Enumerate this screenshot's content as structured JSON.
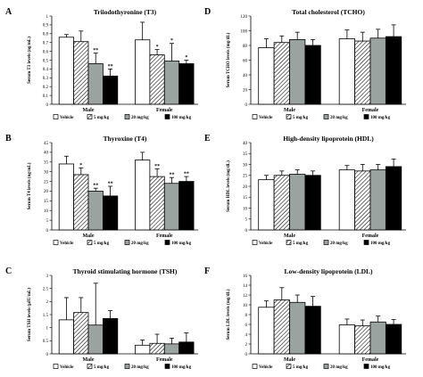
{
  "legend": [
    "Vehicle",
    "5 mg/kg",
    "20 mg/kg",
    "100 mg/kg"
  ],
  "chart_data": [
    {
      "type": "bar",
      "panel": "A",
      "title": "Triiodothyronine (T3)",
      "ylabel": "Serum T3 levels (ng/mL)",
      "ylim": [
        0,
        1
      ],
      "yticks": [
        "0",
        "0.1",
        "0.2",
        "0.3",
        "0.4",
        "0.5",
        "0.6",
        "0.7",
        "0.8",
        "0.9",
        "1"
      ],
      "categories": [
        "Male",
        "Female"
      ],
      "series": [
        {
          "values": [
            0.76,
            0.73
          ],
          "errors": [
            0.03,
            0.2
          ],
          "stars": [
            "",
            ""
          ]
        },
        {
          "values": [
            0.71,
            0.56
          ],
          "errors": [
            0.12,
            0.06
          ],
          "stars": [
            "",
            "*"
          ]
        },
        {
          "values": [
            0.46,
            0.49
          ],
          "errors": [
            0.12,
            0.2
          ],
          "stars": [
            "**",
            "*"
          ]
        },
        {
          "values": [
            0.32,
            0.46
          ],
          "errors": [
            0.08,
            0.04
          ],
          "stars": [
            "**",
            "*"
          ]
        }
      ]
    },
    {
      "type": "bar",
      "panel": "B",
      "title": "Thyroxine (T4)",
      "ylabel": "Serum T4 levels (ng/mL)",
      "ylim": [
        0,
        45
      ],
      "yticks": [
        "0",
        "5",
        "10",
        "15",
        "20",
        "25",
        "30",
        "35",
        "40",
        "45"
      ],
      "categories": [
        "Male",
        "Female"
      ],
      "series": [
        {
          "values": [
            34,
            36
          ],
          "errors": [
            4,
            4
          ],
          "stars": [
            "",
            ""
          ]
        },
        {
          "values": [
            28.5,
            27.5
          ],
          "errors": [
            3.5,
            4
          ],
          "stars": [
            "*",
            "**"
          ]
        },
        {
          "values": [
            20,
            24
          ],
          "errors": [
            1.5,
            3
          ],
          "stars": [
            "**",
            "**"
          ]
        },
        {
          "values": [
            17.5,
            25
          ],
          "errors": [
            5,
            2.5
          ],
          "stars": [
            "**",
            "**"
          ]
        }
      ]
    },
    {
      "type": "bar",
      "panel": "C",
      "title": "Thyroid stimulating hormone (TSH)",
      "ylabel": "Serum TSH levels (μIU/mL)",
      "ylim": [
        0,
        3
      ],
      "yticks": [
        "0",
        "0.5",
        "1",
        "1.5",
        "2",
        "2.5",
        "3"
      ],
      "categories": [
        "Male",
        "Female"
      ],
      "series": [
        {
          "values": [
            1.3,
            0.33
          ],
          "errors": [
            0.85,
            0.2
          ],
          "stars": [
            "",
            ""
          ]
        },
        {
          "values": [
            1.58,
            0.4
          ],
          "errors": [
            0.57,
            0.35
          ],
          "stars": [
            "",
            ""
          ]
        },
        {
          "values": [
            1.1,
            0.38
          ],
          "errors": [
            1.6,
            0.22
          ],
          "stars": [
            "",
            ""
          ]
        },
        {
          "values": [
            1.35,
            0.45
          ],
          "errors": [
            0.3,
            0.35
          ],
          "stars": [
            "",
            ""
          ]
        }
      ]
    },
    {
      "type": "bar",
      "panel": "D",
      "title": "Total cholesterol (TCHO)",
      "ylabel": "Serum TCHO levels (mg/dL)",
      "ylim": [
        0,
        120
      ],
      "yticks": [
        "0",
        "20",
        "40",
        "60",
        "80",
        "100",
        "120"
      ],
      "categories": [
        "Male",
        "Female"
      ],
      "series": [
        {
          "values": [
            77,
            89
          ],
          "errors": [
            12,
            12
          ],
          "stars": [
            "",
            ""
          ]
        },
        {
          "values": [
            84,
            86
          ],
          "errors": [
            9,
            12
          ],
          "stars": [
            "",
            ""
          ]
        },
        {
          "values": [
            88,
            90
          ],
          "errors": [
            10,
            12
          ],
          "stars": [
            "",
            ""
          ]
        },
        {
          "values": [
            80,
            92
          ],
          "errors": [
            8,
            16
          ],
          "stars": [
            "",
            ""
          ]
        }
      ]
    },
    {
      "type": "bar",
      "panel": "E",
      "title": "High-density lipoprotein (HDL)",
      "ylabel": "Serum HDL levels (mg/dL)",
      "ylim": [
        0,
        40
      ],
      "yticks": [
        "0",
        "5",
        "10",
        "15",
        "20",
        "25",
        "30",
        "35",
        "40"
      ],
      "categories": [
        "Male",
        "Female"
      ],
      "series": [
        {
          "values": [
            23,
            27.5
          ],
          "errors": [
            2,
            2
          ],
          "stars": [
            "",
            ""
          ]
        },
        {
          "values": [
            25,
            27
          ],
          "errors": [
            2,
            3
          ],
          "stars": [
            "",
            ""
          ]
        },
        {
          "values": [
            25.5,
            27.5
          ],
          "errors": [
            2,
            2.5
          ],
          "stars": [
            "",
            ""
          ]
        },
        {
          "values": [
            25,
            29
          ],
          "errors": [
            2,
            3.5
          ],
          "stars": [
            "",
            ""
          ]
        }
      ]
    },
    {
      "type": "bar",
      "panel": "F",
      "title": "Low-density lipoprotein (LDL)",
      "ylabel": "Serum LDL levels (mg/dL)",
      "ylim": [
        0,
        16
      ],
      "yticks": [
        "0",
        "2",
        "4",
        "6",
        "8",
        "10",
        "12",
        "14",
        "16"
      ],
      "categories": [
        "Male",
        "Female"
      ],
      "series": [
        {
          "values": [
            9.5,
            5.9
          ],
          "errors": [
            1.3,
            1.2
          ],
          "stars": [
            "",
            ""
          ]
        },
        {
          "values": [
            11,
            5.7
          ],
          "errors": [
            2.5,
            1.2
          ],
          "stars": [
            "",
            ""
          ]
        },
        {
          "values": [
            10.5,
            6.5
          ],
          "errors": [
            1.5,
            1.2
          ],
          "stars": [
            "",
            ""
          ]
        },
        {
          "values": [
            9.7,
            6
          ],
          "errors": [
            2,
            1
          ],
          "stars": [
            "",
            ""
          ]
        }
      ]
    }
  ]
}
